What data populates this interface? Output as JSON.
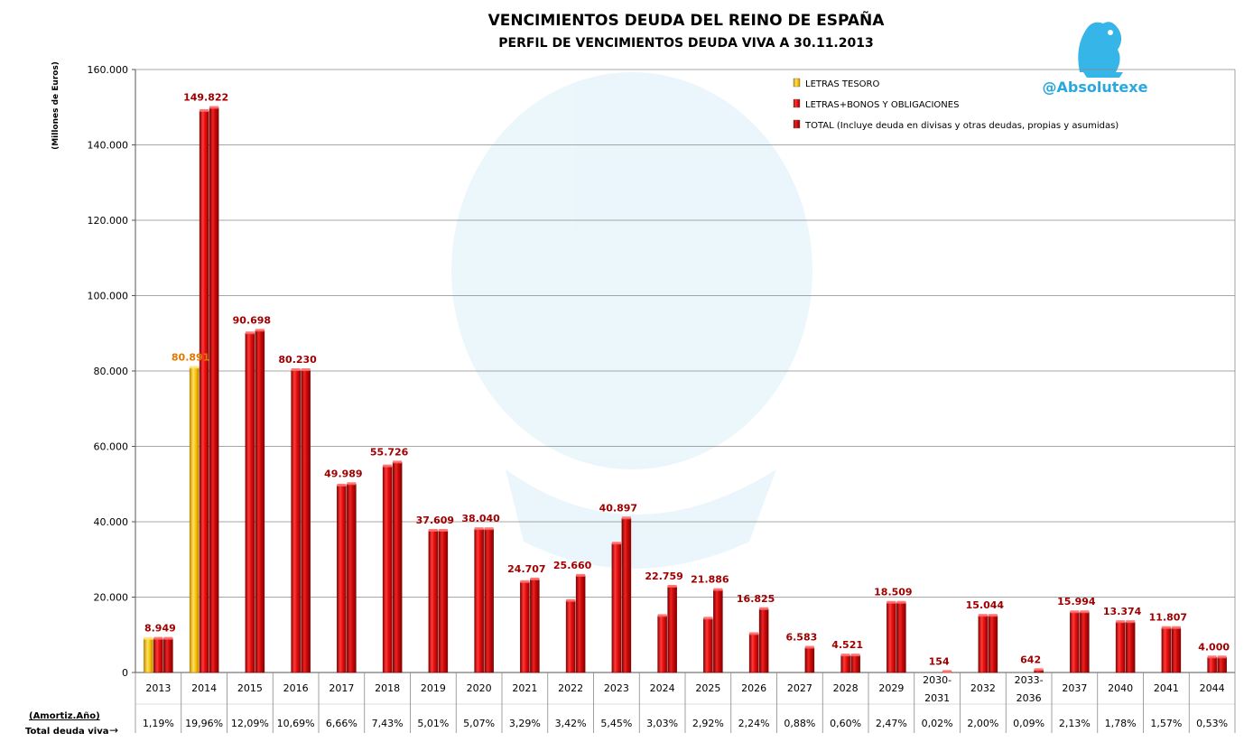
{
  "chart_data": {
    "type": "bar",
    "title": "VENCIMIENTOS  DEUDA  DEL  REINO  DE  ESPAÑA",
    "subtitle": "PERFIL DE VENCIMIENTOS DEUDA VIVA A 30.11.2013",
    "ylabel": "(Millones de Euros)",
    "ylim": [
      0,
      160000
    ],
    "yticks": [
      0,
      20000,
      40000,
      60000,
      80000,
      100000,
      120000,
      140000,
      160000
    ],
    "ytick_labels": [
      "0",
      "20.000",
      "40.000",
      "60.000",
      "80.000",
      "100.000",
      "120.000",
      "140.000",
      "160.000"
    ],
    "grid": true,
    "legend_position": "top-right",
    "categories": [
      "2013",
      "2014",
      "2015",
      "2016",
      "2017",
      "2018",
      "2019",
      "2020",
      "2021",
      "2022",
      "2023",
      "2024",
      "2025",
      "2026",
      "2027",
      "2028",
      "2029",
      "2030-\n2031",
      "2032",
      "2033-\n2036",
      "2037",
      "2040",
      "2041",
      "2044"
    ],
    "series": [
      {
        "name": "LETRAS TESORO",
        "color": "#f5c000",
        "values": [
          8949,
          80891,
          0,
          0,
          0,
          0,
          0,
          0,
          0,
          0,
          0,
          0,
          0,
          0,
          0,
          0,
          0,
          0,
          0,
          0,
          0,
          0,
          0,
          0
        ]
      },
      {
        "name": "LETRAS+BONOS Y OBLIGACIONES",
        "color": "#e41010",
        "values": [
          8949,
          149000,
          90000,
          80230,
          49600,
          54700,
          37609,
          38040,
          24000,
          19000,
          34200,
          15000,
          14300,
          10200,
          0,
          4521,
          18509,
          0,
          15044,
          0,
          15994,
          13374,
          11807,
          4000
        ]
      },
      {
        "name": "TOTAL (Incluye deuda en divisas y otras deudas, propias y asumidas)",
        "color": "#c80a0a",
        "values": [
          8949,
          149822,
          90698,
          80230,
          49989,
          55726,
          37609,
          38040,
          24707,
          25660,
          40897,
          22759,
          21886,
          16825,
          6583,
          4521,
          18509,
          154,
          15044,
          642,
          15994,
          13374,
          11807,
          4000
        ]
      }
    ],
    "data_labels": [
      {
        "category": "2013",
        "text": "8.949",
        "color": "#a00000"
      },
      {
        "category": "2014",
        "text": "80.891",
        "color": "#e07800",
        "series": "LETRAS TESORO"
      },
      {
        "category": "2014",
        "text": "149.822",
        "color": "#a00000"
      },
      {
        "category": "2015",
        "text": "90.698",
        "color": "#a00000"
      },
      {
        "category": "2016",
        "text": "80.230",
        "color": "#a00000"
      },
      {
        "category": "2017",
        "text": "49.989",
        "color": "#a00000"
      },
      {
        "category": "2018",
        "text": "55.726",
        "color": "#a00000"
      },
      {
        "category": "2019",
        "text": "37.609",
        "color": "#a00000"
      },
      {
        "category": "2020",
        "text": "38.040",
        "color": "#a00000"
      },
      {
        "category": "2021",
        "text": "24.707",
        "color": "#a00000"
      },
      {
        "category": "2022",
        "text": "25.660",
        "color": "#a00000"
      },
      {
        "category": "2023",
        "text": "40.897",
        "color": "#a00000"
      },
      {
        "category": "2024",
        "text": "22.759",
        "color": "#a00000"
      },
      {
        "category": "2025",
        "text": "21.886",
        "color": "#a00000"
      },
      {
        "category": "2026",
        "text": "16.825",
        "color": "#a00000"
      },
      {
        "category": "2027",
        "text": "6.583",
        "color": "#a00000"
      },
      {
        "category": "2028",
        "text": "4.521",
        "color": "#a00000"
      },
      {
        "category": "2029",
        "text": "18.509",
        "color": "#a00000"
      },
      {
        "category": "2030-\n2031",
        "text": "154",
        "color": "#a00000"
      },
      {
        "category": "2032",
        "text": "15.044",
        "color": "#a00000"
      },
      {
        "category": "2033-\n2036",
        "text": "642",
        "color": "#a00000"
      },
      {
        "category": "2037",
        "text": "15.994",
        "color": "#a00000"
      },
      {
        "category": "2040",
        "text": "13.374",
        "color": "#a00000"
      },
      {
        "category": "2041",
        "text": "11.807",
        "color": "#a00000"
      },
      {
        "category": "2044",
        "text": "4.000",
        "color": "#a00000"
      }
    ],
    "table": {
      "row1_label": "(Amortiz.Año)",
      "row2_label": "Total deuda viva",
      "arrow": "→",
      "percentages": [
        "1,19%",
        "19,96%",
        "12,09%",
        "10,69%",
        "6,66%",
        "7,43%",
        "5,01%",
        "5,07%",
        "3,29%",
        "3,42%",
        "5,45%",
        "3,03%",
        "2,92%",
        "2,24%",
        "0,88%",
        "0,60%",
        "2,47%",
        "0,02%",
        "2,00%",
        "0,09%",
        "2,13%",
        "1,78%",
        "1,57%",
        "0,53%"
      ]
    }
  },
  "branding": {
    "handle": "@Absolutexe",
    "handle_color": "#29a8e0",
    "logo_icon": "griffin-logo-icon"
  }
}
